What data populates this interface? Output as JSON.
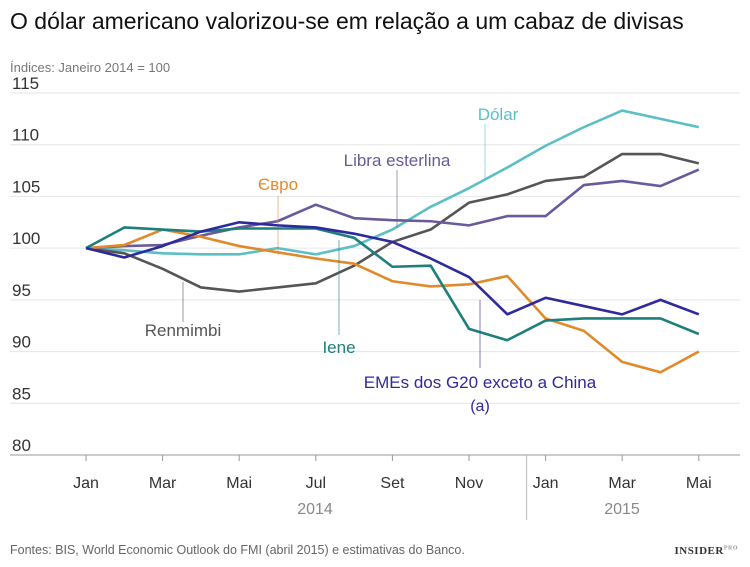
{
  "title": "O dólar americano valorizou-se em relação a um cabaz de divisas",
  "subtitle": "Índices: Janeiro 2014 = 100",
  "source": "Fontes: BIS, World Economic Outlook do FMI (abril 2015) e estimativas do Banco.",
  "logo": "INSIDER",
  "logo_sup": "PRO",
  "chart_data": {
    "type": "line",
    "x": [
      "2014-01",
      "2014-02",
      "2014-03",
      "2014-04",
      "2014-05",
      "2014-06",
      "2014-07",
      "2014-08",
      "2014-09",
      "2014-10",
      "2014-11",
      "2014-12",
      "2015-01",
      "2015-02",
      "2015-03",
      "2015-04",
      "2015-05"
    ],
    "x_tick_labels": [
      "Jan",
      "Mar",
      "Mai",
      "Jul",
      "Set",
      "Nov",
      "Jan",
      "Mar",
      "Mai"
    ],
    "x_year_labels": [
      "2014",
      "2015"
    ],
    "y_ticks": [
      80,
      85,
      90,
      95,
      100,
      105,
      110,
      115
    ],
    "ylim": [
      80,
      115
    ],
    "grid": true,
    "series": [
      {
        "name": "Dólar",
        "color": "#5bbfc6",
        "values": [
          100,
          99.8,
          99.5,
          99.4,
          99.4,
          100,
          99.4,
          100.2,
          101.8,
          104,
          105.8,
          107.8,
          109.9,
          111.7,
          113.3,
          112.5,
          111.7
        ]
      },
      {
        "name": "Renmimbi",
        "color": "#555555",
        "values": [
          100,
          99.5,
          98,
          96.2,
          95.8,
          96.2,
          96.6,
          98.3,
          100.6,
          101.8,
          104.4,
          105.2,
          106.5,
          106.9,
          109.1,
          109.1,
          108.2
        ]
      },
      {
        "name": "Libra esterlina",
        "color": "#6a5a9c",
        "values": [
          100,
          100.2,
          100.3,
          101.2,
          102,
          102.6,
          104.2,
          102.9,
          102.7,
          102.6,
          102.2,
          103.1,
          103.1,
          106.1,
          106.5,
          106,
          107.6
        ]
      },
      {
        "name": "Євро",
        "color": "#e08a2c",
        "values": [
          100,
          100.3,
          101.8,
          101.1,
          100.2,
          99.6,
          99,
          98.5,
          96.8,
          96.3,
          96.5,
          97.3,
          93.2,
          92,
          89,
          88,
          90
        ]
      },
      {
        "name": "Iene",
        "color": "#1e7f7c",
        "values": [
          100,
          102,
          101.8,
          101.6,
          101.9,
          101.9,
          101.9,
          101,
          98.2,
          98.3,
          92.2,
          91.1,
          93,
          93.2,
          93.2,
          93.2,
          91.7
        ]
      },
      {
        "name": "EMEs dos G20 exceto a China",
        "name_note": "(a)",
        "color": "#2e2a9c",
        "values": [
          100,
          99.1,
          100.2,
          101.6,
          102.5,
          102.2,
          102,
          101.4,
          100.6,
          99,
          97.2,
          93.6,
          95.2,
          94.4,
          93.6,
          95,
          93.6
        ]
      }
    ]
  }
}
